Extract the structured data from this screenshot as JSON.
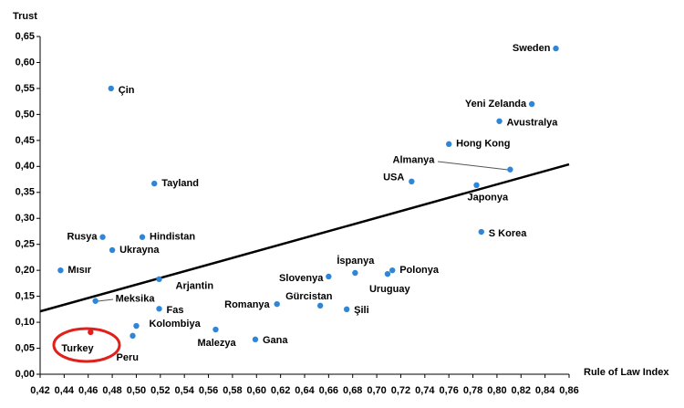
{
  "chart_data": {
    "type": "scatter",
    "x_label": "Rule of Law Index",
    "y_label": "Trust",
    "labels": [
      "Sweden",
      "Yeni Zelanda",
      "Avustralya",
      "Hong Kong",
      "Almanya",
      "USA",
      "Japonya",
      "S Korea",
      "Çin",
      "Tayland",
      "Rusya",
      "Hindistan",
      "Ukrayna",
      "Mısır",
      "Arjantin",
      "Meksika",
      "Fas",
      "Kolombiya",
      "Peru",
      "Turkey",
      "Malezya",
      "Gana",
      "Romanya",
      "Slovenya",
      "İspanya",
      "Polonya",
      "Uruguay",
      "Gürcistan",
      "Şili"
    ],
    "x": [
      0.849,
      0.829,
      0.802,
      0.76,
      0.811,
      0.729,
      0.783,
      0.787,
      0.479,
      0.515,
      0.472,
      0.505,
      0.48,
      0.437,
      0.519,
      0.466,
      0.519,
      0.5,
      0.497,
      0.462,
      0.566,
      0.599,
      0.617,
      0.66,
      0.682,
      0.713,
      0.709,
      0.653,
      0.675
    ],
    "y": [
      0.627,
      0.52,
      0.487,
      0.443,
      0.394,
      0.371,
      0.364,
      0.274,
      0.55,
      0.367,
      0.264,
      0.264,
      0.239,
      0.2,
      0.183,
      0.141,
      0.126,
      0.093,
      0.074,
      0.081,
      0.086,
      0.067,
      0.135,
      0.188,
      0.195,
      0.2,
      0.193,
      0.132,
      0.125
    ],
    "colors": [
      "#2f86d8",
      "#2f86d8",
      "#2f86d8",
      "#2f86d8",
      "#2f86d8",
      "#2f86d8",
      "#2f86d8",
      "#2f86d8",
      "#2f86d8",
      "#2f86d8",
      "#2f86d8",
      "#2f86d8",
      "#2f86d8",
      "#2f86d8",
      "#2f86d8",
      "#2f86d8",
      "#2f86d8",
      "#2f86d8",
      "#2f86d8",
      "#e0201c",
      "#2f86d8",
      "#2f86d8",
      "#2f86d8",
      "#2f86d8",
      "#2f86d8",
      "#2f86d8",
      "#2f86d8",
      "#2f86d8",
      "#2f86d8"
    ],
    "trendline": {
      "x": [
        0.42,
        0.86
      ],
      "y": [
        0.121,
        0.404
      ],
      "color": "#000000"
    },
    "xlim": [
      0.42,
      0.86
    ],
    "xticks": [
      {
        "value": 0.42,
        "label": "0,42"
      },
      {
        "value": 0.44,
        "label": "0,44"
      },
      {
        "value": 0.46,
        "label": "0,46"
      },
      {
        "value": 0.48,
        "label": "0,48"
      },
      {
        "value": 0.5,
        "label": "0,50"
      },
      {
        "value": 0.52,
        "label": "0,52"
      },
      {
        "value": 0.54,
        "label": "0,54"
      },
      {
        "value": 0.56,
        "label": "0,56"
      },
      {
        "value": 0.58,
        "label": "0,58"
      },
      {
        "value": 0.6,
        "label": "0,60"
      },
      {
        "value": 0.62,
        "label": "0,62"
      },
      {
        "value": 0.64,
        "label": "0,64"
      },
      {
        "value": 0.66,
        "label": "0,66"
      },
      {
        "value": 0.68,
        "label": "0,68"
      },
      {
        "value": 0.7,
        "label": "0,70"
      },
      {
        "value": 0.72,
        "label": "0,72"
      },
      {
        "value": 0.74,
        "label": "0,74"
      },
      {
        "value": 0.76,
        "label": "0,76"
      },
      {
        "value": 0.78,
        "label": "0,78"
      },
      {
        "value": 0.8,
        "label": "0,80"
      },
      {
        "value": 0.82,
        "label": "0,82"
      },
      {
        "value": 0.84,
        "label": "0,84"
      },
      {
        "value": 0.86,
        "label": "0,86"
      }
    ],
    "ylim": [
      0,
      0.65
    ],
    "yticks": [
      {
        "value": 0,
        "label": "0,00"
      },
      {
        "value": 0.05,
        "label": "0,05"
      },
      {
        "value": 0.1,
        "label": "0,10"
      },
      {
        "value": 0.15,
        "label": "0,15"
      },
      {
        "value": 0.2,
        "label": "0,20"
      },
      {
        "value": 0.25,
        "label": "0,25"
      },
      {
        "value": 0.3,
        "label": "0,30"
      },
      {
        "value": 0.35,
        "label": "0,35"
      },
      {
        "value": 0.4,
        "label": "0,40"
      },
      {
        "value": 0.45,
        "label": "0,45"
      },
      {
        "value": 0.5,
        "label": "0,50"
      },
      {
        "value": 0.55,
        "label": "0,55"
      },
      {
        "value": 0.6,
        "label": "0,60"
      },
      {
        "value": 0.65,
        "label": "0,65"
      }
    ]
  }
}
